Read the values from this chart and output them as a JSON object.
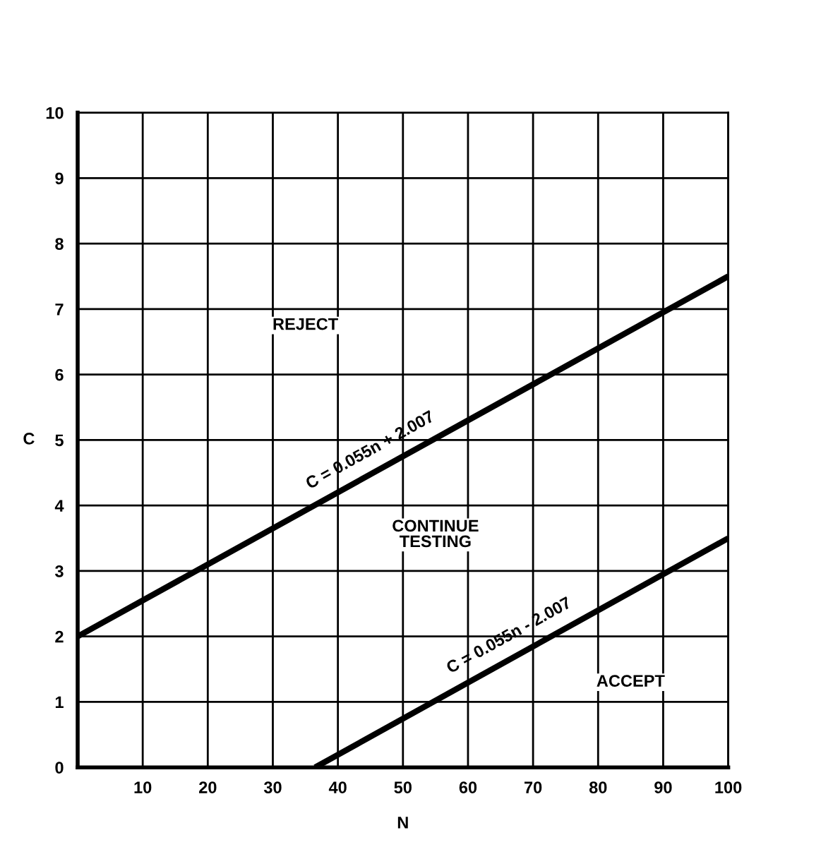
{
  "chart_data": {
    "type": "line",
    "xlabel": "N",
    "ylabel": "C",
    "series": [
      {
        "name": "C = 0.055n + 2.007",
        "color": "#000000",
        "x": [
          0,
          100
        ],
        "values": [
          2.0,
          7.5
        ]
      },
      {
        "name": "C = 0.055n - 2.007",
        "color": "#000000",
        "x": [
          36.5,
          100
        ],
        "values": [
          0,
          3.5
        ]
      }
    ],
    "xlim": [
      0,
      100
    ],
    "xticks": [
      10,
      20,
      30,
      40,
      50,
      60,
      70,
      80,
      90,
      100
    ],
    "ylim": [
      0,
      10
    ],
    "yticks": [
      0,
      1,
      2,
      3,
      4,
      5,
      6,
      7,
      8,
      9,
      10
    ],
    "grid": true,
    "legend": false,
    "marker": "none",
    "line_style": "solid",
    "annotations": [
      "REJECT",
      "CONTINUE\nTESTING",
      "ACCEPT"
    ]
  }
}
